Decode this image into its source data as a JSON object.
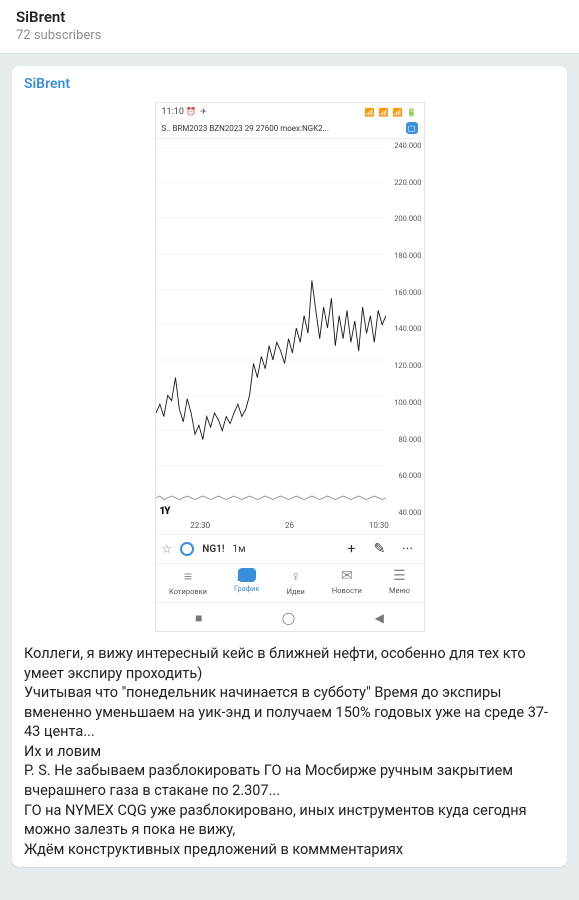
{
  "header": {
    "title": "SiBrent",
    "subscribers": "72 subscribers"
  },
  "message": {
    "author": "SiBrent",
    "body": "Коллеги, я вижу интересный кейс в ближней нефти, особенно для тех кто умеет экспиру проходить)\nУчитывая что \"понедельник начинается в субботу\" Время до экспиры вмененно уменьшаем на уик-энд и получаем 150% годовых уже на среде 37-43 цента...\nИх и ловим\nP. S. Не забываем разблокировать ГО на Мосбирже ручным закрытием вчерашнего газа в стакане по 2.307...\nГО на NYMEX CQG уже разблокировано, иных инструментов куда сегодня можно залезть я пока не вижу,\nЖдём конструктивных предложений в коммментариях"
  },
  "phone_status": {
    "time": "11:10",
    "left_icons": "⏰ ✈",
    "right_icons": "📶 📶 📶 🔋"
  },
  "chart": {
    "ticker_line": "S..  BRM2023 BZN2023 29 27600 moex:NGK2...",
    "type": "line",
    "ylim": [
      30,
      245
    ],
    "y_ticks": [
      240.0,
      220.0,
      200.0,
      180.0,
      160.0,
      140.0,
      120.0,
      100.0,
      80.0,
      60.0,
      40.0
    ],
    "x_labels": [
      "22:30",
      "26",
      "10:30"
    ],
    "grid_color": "#f2f2f2",
    "line_color": "#1a1a1a",
    "secondary_color": "#888888",
    "background_color": "#ffffff",
    "series_main": [
      90,
      95,
      88,
      100,
      97,
      110,
      92,
      85,
      98,
      90,
      78,
      83,
      75,
      88,
      82,
      90,
      86,
      80,
      88,
      84,
      90,
      95,
      88,
      92,
      100,
      118,
      110,
      122,
      115,
      128,
      120,
      130,
      125,
      118,
      132,
      124,
      138,
      130,
      145,
      135,
      165,
      148,
      132,
      150,
      138,
      155,
      128,
      145,
      132,
      148,
      130,
      142,
      125,
      150,
      135,
      145,
      130,
      148,
      140,
      145
    ],
    "series_sec": [
      42,
      43,
      41,
      42,
      43,
      42,
      41,
      42,
      43,
      42,
      41,
      42,
      43,
      42,
      41,
      42,
      43,
      42,
      41,
      42,
      43,
      42,
      41,
      42,
      43,
      42,
      41,
      42,
      43,
      42,
      41,
      42,
      43,
      42,
      41,
      42,
      43,
      42,
      41,
      42,
      43,
      42,
      41,
      42,
      43,
      42,
      41,
      42,
      43,
      42,
      41,
      42,
      43,
      42,
      41,
      42,
      43,
      42,
      41,
      42
    ],
    "tv_logo": "1Y"
  },
  "toolbar": {
    "symbol": "NG1!",
    "interval": "1м",
    "plus": "+",
    "pencil": "✎",
    "dots": "···"
  },
  "bottom_nav": {
    "items": [
      {
        "icon": "≡",
        "label": "Котировки"
      },
      {
        "icon": "▬",
        "label": "График",
        "active": true
      },
      {
        "icon": "♀",
        "label": "Идеи"
      },
      {
        "icon": "✉",
        "label": "Новости"
      },
      {
        "icon": "☰",
        "label": "Меню"
      }
    ]
  },
  "android_nav": {
    "square": "■",
    "circle": "◯",
    "triangle": "◀"
  }
}
